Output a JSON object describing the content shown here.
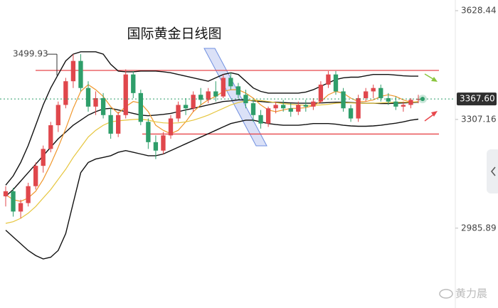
{
  "chart_data": {
    "type": "candlestick",
    "title": "国际黄金日线图",
    "watermark": "黄力晨",
    "ylim": [
      2750,
      3660
    ],
    "yticks": [
      3628.44,
      3307.16,
      2985.89
    ],
    "last_price": {
      "value": 3367.6,
      "label": "3367.60"
    },
    "high_label": 3499.93,
    "up_color": "#e0474c",
    "down_color": "#2e9e6a",
    "level_color": "#e8474c",
    "levels": [
      3452,
      3264
    ],
    "open": [
      3080,
      3095,
      3035,
      3060,
      3110,
      3170,
      3220,
      3290,
      3350,
      3420,
      3480,
      3400,
      3345,
      3370,
      3320,
      3265,
      3320,
      3440,
      3385,
      3300,
      3240,
      3215,
      3260,
      3310,
      3350,
      3340,
      3380,
      3365,
      3390,
      3375,
      3430,
      3405,
      3380,
      3355,
      3320,
      3295,
      3340,
      3350,
      3340,
      3330,
      3350,
      3345,
      3360,
      3410,
      3440,
      3390,
      3340,
      3310,
      3370,
      3390,
      3400,
      3370,
      3360,
      3345,
      3350,
      3365
    ],
    "high": [
      3110,
      3105,
      3070,
      3120,
      3180,
      3230,
      3300,
      3360,
      3430,
      3500,
      3500,
      3420,
      3390,
      3385,
      3340,
      3330,
      3455,
      3450,
      3395,
      3310,
      3260,
      3270,
      3320,
      3360,
      3370,
      3390,
      3400,
      3400,
      3420,
      3440,
      3445,
      3415,
      3395,
      3365,
      3335,
      3345,
      3360,
      3365,
      3355,
      3360,
      3365,
      3370,
      3420,
      3450,
      3450,
      3400,
      3350,
      3380,
      3400,
      3410,
      3410,
      3385,
      3375,
      3360,
      3370,
      3380
    ],
    "low": [
      3050,
      3020,
      3015,
      3050,
      3100,
      3150,
      3210,
      3270,
      3340,
      3400,
      3390,
      3330,
      3320,
      3310,
      3250,
      3255,
      3310,
      3370,
      3290,
      3220,
      3190,
      3205,
      3250,
      3300,
      3320,
      3330,
      3350,
      3355,
      3360,
      3370,
      3395,
      3370,
      3340,
      3300,
      3280,
      3285,
      3325,
      3330,
      3315,
      3320,
      3330,
      3335,
      3355,
      3400,
      3380,
      3330,
      3300,
      3300,
      3360,
      3370,
      3360,
      3350,
      3335,
      3330,
      3340,
      3355
    ],
    "close": [
      3095,
      3035,
      3060,
      3110,
      3170,
      3220,
      3290,
      3350,
      3420,
      3480,
      3400,
      3345,
      3370,
      3320,
      3265,
      3320,
      3440,
      3385,
      3300,
      3240,
      3215,
      3260,
      3310,
      3350,
      3340,
      3380,
      3365,
      3390,
      3375,
      3430,
      3405,
      3380,
      3355,
      3320,
      3295,
      3340,
      3350,
      3340,
      3330,
      3350,
      3345,
      3360,
      3410,
      3440,
      3390,
      3340,
      3310,
      3370,
      3390,
      3400,
      3370,
      3360,
      3345,
      3350,
      3365,
      3368
    ],
    "series": [
      {
        "name": "BOLL UP",
        "color": "#111111",
        "values": [
          3113,
          3140,
          3180,
          3230,
          3290,
          3350,
          3400,
          3440,
          3480,
          3500,
          3507,
          3507,
          3507,
          3500,
          3470,
          3450,
          3448,
          3448,
          3450,
          3450,
          3450,
          3448,
          3445,
          3440,
          3435,
          3430,
          3425,
          3420,
          3430,
          3440,
          3445,
          3440,
          3420,
          3400,
          3390,
          3385,
          3385,
          3385,
          3385,
          3385,
          3388,
          3395,
          3405,
          3415,
          3425,
          3430,
          3432,
          3432,
          3436,
          3440,
          3440,
          3440,
          3438,
          3436,
          3435,
          3435
        ]
      },
      {
        "name": "BOLL MID",
        "color": "#111111",
        "values": [
          3080,
          3100,
          3125,
          3150,
          3175,
          3200,
          3225,
          3250,
          3270,
          3290,
          3305,
          3320,
          3330,
          3338,
          3340,
          3335,
          3330,
          3325,
          3320,
          3318,
          3320,
          3322,
          3325,
          3330,
          3335,
          3340,
          3345,
          3350,
          3355,
          3360,
          3362,
          3365,
          3365,
          3362,
          3360,
          3358,
          3358,
          3357,
          3356,
          3355,
          3355,
          3355,
          3356,
          3357,
          3358,
          3358,
          3357,
          3356,
          3355,
          3355,
          3354,
          3354,
          3355,
          3356,
          3357,
          3358
        ]
      },
      {
        "name": "BOLL DN",
        "color": "#111111",
        "values": [
          2980,
          2960,
          2940,
          2920,
          2905,
          2895,
          2900,
          2920,
          2970,
          3060,
          3150,
          3180,
          3190,
          3195,
          3200,
          3210,
          3215,
          3210,
          3205,
          3200,
          3200,
          3205,
          3215,
          3225,
          3235,
          3245,
          3255,
          3265,
          3275,
          3285,
          3295,
          3300,
          3305,
          3305,
          3300,
          3295,
          3292,
          3290,
          3290,
          3290,
          3292,
          3295,
          3295,
          3295,
          3293,
          3290,
          3288,
          3287,
          3287,
          3288,
          3290,
          3293,
          3296,
          3300,
          3305,
          3308
        ]
      },
      {
        "name": "MA5",
        "color": "#f0962a",
        "values": [
          3085,
          3070,
          3065,
          3075,
          3095,
          3130,
          3175,
          3225,
          3280,
          3340,
          3390,
          3410,
          3395,
          3375,
          3345,
          3325,
          3345,
          3360,
          3355,
          3330,
          3290,
          3275,
          3265,
          3275,
          3300,
          3330,
          3350,
          3365,
          3375,
          3390,
          3395,
          3395,
          3385,
          3370,
          3350,
          3335,
          3330,
          3335,
          3340,
          3340,
          3342,
          3348,
          3360,
          3380,
          3390,
          3385,
          3370,
          3360,
          3360,
          3365,
          3375,
          3380,
          3375,
          3365,
          3358,
          3360
        ]
      },
      {
        "name": "MA20",
        "color": "#e6c53c",
        "values": [
          3000,
          3005,
          3015,
          3030,
          3050,
          3075,
          3100,
          3130,
          3160,
          3195,
          3225,
          3255,
          3275,
          3290,
          3300,
          3303,
          3305,
          3307,
          3308,
          3305,
          3300,
          3297,
          3296,
          3297,
          3300,
          3305,
          3312,
          3320,
          3330,
          3340,
          3350,
          3357,
          3362,
          3364,
          3363,
          3360,
          3357,
          3354,
          3352,
          3350,
          3349,
          3349,
          3350,
          3352,
          3355,
          3356,
          3356,
          3355,
          3355,
          3355,
          3356,
          3357,
          3358,
          3358,
          3358,
          3359
        ]
      }
    ]
  }
}
